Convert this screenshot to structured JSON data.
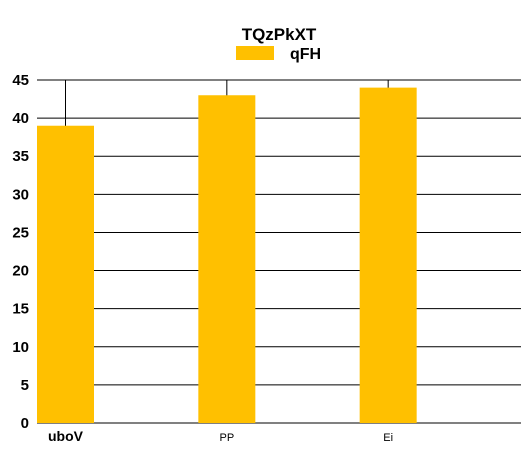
{
  "chart_data": {
    "type": "bar",
    "title": "TQzPkXT",
    "categories": [
      "uboV",
      "PP",
      "Ei"
    ],
    "series": [
      {
        "name": "qFH",
        "values": [
          39,
          43,
          44
        ],
        "color": "#FFC000"
      }
    ],
    "ylim": [
      0,
      45
    ],
    "yticks": [
      0,
      5,
      10,
      15,
      20,
      25,
      30,
      35,
      40,
      45
    ],
    "grid": true,
    "legend_position": "top-center",
    "xlabel": "",
    "ylabel": ""
  }
}
